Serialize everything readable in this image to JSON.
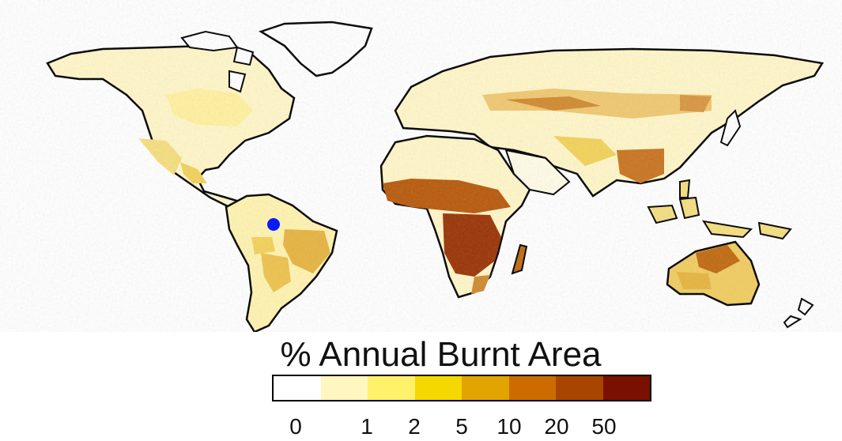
{
  "title": "% Annual Burnt Area",
  "legend": {
    "colors": [
      "#ffffff",
      "#fff7bf",
      "#fff26a",
      "#f5d800",
      "#e2a400",
      "#cc6c00",
      "#a84500",
      "#7a1000"
    ],
    "ticks": [
      "0",
      "1",
      "2",
      "5",
      "10",
      "20",
      "50"
    ]
  },
  "map": {
    "ocean": "#ffffff",
    "outline": "#000000",
    "marker": {
      "label": "",
      "color": "#0a1aff"
    },
    "burn_colors": {
      "low": "#fff9d8",
      "light": "#fff1a0",
      "mid": "#f2d25a",
      "med": "#e0a830",
      "high": "#c06a10",
      "very_high": "#8a2a05"
    }
  }
}
